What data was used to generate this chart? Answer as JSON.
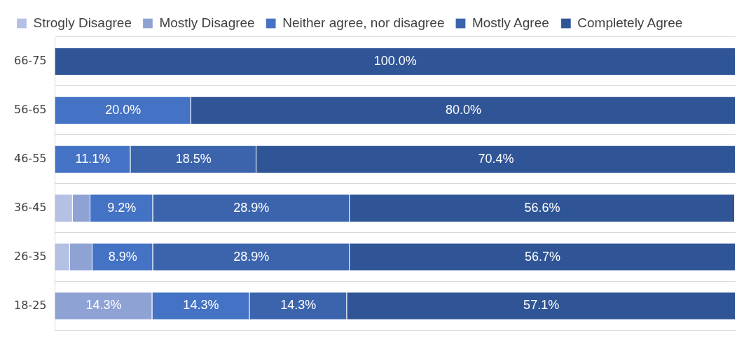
{
  "chart_data": {
    "type": "bar",
    "orientation": "horizontal",
    "stacked": true,
    "categories": [
      "66-75",
      "56-65",
      "46-55",
      "36-45",
      "26-35",
      "18-25"
    ],
    "series": [
      {
        "name": "Strogly Disagree",
        "color": "#b4c0e4",
        "values": [
          0,
          0,
          0,
          2.6,
          2.2,
          0
        ],
        "value_labels": [
          null,
          null,
          null,
          null,
          null,
          null
        ]
      },
      {
        "name": "Mostly Disagree",
        "color": "#8fa2d4",
        "values": [
          0,
          0,
          0,
          2.6,
          3.3,
          14.3
        ],
        "value_labels": [
          null,
          null,
          null,
          null,
          null,
          "14.3%"
        ]
      },
      {
        "name": "Neither agree, nor disagree",
        "color": "#4472c4",
        "values": [
          0,
          20.0,
          11.1,
          9.2,
          8.9,
          14.3
        ],
        "value_labels": [
          null,
          "20.0%",
          "11.1%",
          "9.2%",
          "8.9%",
          "14.3%"
        ]
      },
      {
        "name": "Mostly Agree",
        "color": "#3b64ad",
        "values": [
          0,
          0,
          18.5,
          28.9,
          28.9,
          14.3
        ],
        "value_labels": [
          null,
          null,
          "18.5%",
          "28.9%",
          "28.9%",
          "14.3%"
        ]
      },
      {
        "name": "Completely Agree",
        "color": "#2f5597",
        "values": [
          100,
          80,
          70.4,
          56.6,
          56.7,
          57.1
        ],
        "value_labels": [
          "100.0%",
          "80.0%",
          "70.4%",
          "56.6%",
          "56.7%",
          "57.1%"
        ]
      }
    ],
    "xlim": [
      0,
      100
    ],
    "tick_labels": "y",
    "grid": "y",
    "legend": "top"
  }
}
